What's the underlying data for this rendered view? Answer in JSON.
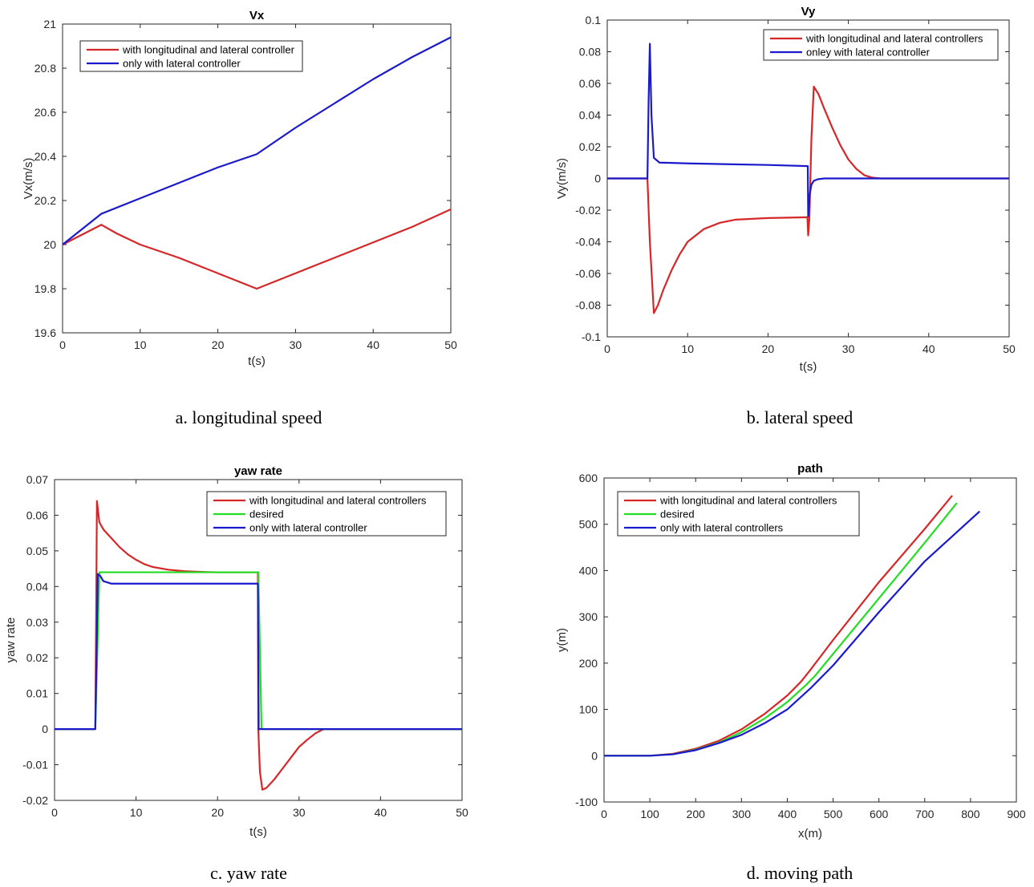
{
  "colors": {
    "red": "#d62728",
    "green": "#22dd22",
    "blue": "#1a1acc",
    "axis": "#262626"
  },
  "chart_data": [
    {
      "id": "a",
      "type": "line",
      "title": "Vx",
      "xlabel": "t(s)",
      "ylabel": "Vx(m/s)",
      "caption": "a. longitudinal speed",
      "xlim": [
        0,
        50
      ],
      "ylim": [
        19.6,
        21
      ],
      "xticks": [
        0,
        10,
        20,
        30,
        40,
        50
      ],
      "xtick_labels": [
        "0",
        "10",
        "20",
        "30",
        "40",
        "50"
      ],
      "yticks": [
        19.6,
        19.8,
        20,
        20.2,
        20.4,
        20.6,
        20.8,
        21
      ],
      "ytick_labels": [
        "19.6",
        "19.8",
        "20",
        "20.2",
        "20.4",
        "20.6",
        "20.8",
        "21"
      ],
      "grid": false,
      "legend_position": "top-left",
      "series": [
        {
          "name": "with longitudinal and lateral controller",
          "color": "#d62728",
          "x": [
            0,
            5,
            7,
            10,
            15,
            20,
            25,
            30,
            35,
            40,
            45,
            50
          ],
          "y": [
            20.0,
            20.09,
            20.05,
            20.0,
            19.94,
            19.87,
            19.8,
            19.87,
            19.94,
            20.01,
            20.08,
            20.16
          ]
        },
        {
          "name": "only with lateral controller",
          "color": "#1a1acc",
          "x": [
            0,
            5,
            10,
            15,
            20,
            25,
            30,
            35,
            40,
            45,
            50
          ],
          "y": [
            20.0,
            20.14,
            20.21,
            20.28,
            20.35,
            20.41,
            20.53,
            20.64,
            20.75,
            20.85,
            20.94
          ]
        }
      ]
    },
    {
      "id": "b",
      "type": "line",
      "title": "Vy",
      "xlabel": "t(s)",
      "ylabel": "Vy(m/s)",
      "caption": "b. lateral speed",
      "xlim": [
        0,
        50
      ],
      "ylim": [
        -0.1,
        0.1
      ],
      "xticks": [
        0,
        10,
        20,
        30,
        40,
        50
      ],
      "xtick_labels": [
        "0",
        "10",
        "20",
        "30",
        "40",
        "50"
      ],
      "yticks": [
        -0.1,
        -0.08,
        -0.06,
        -0.04,
        -0.02,
        0,
        0.02,
        0.04,
        0.06,
        0.08,
        0.1
      ],
      "ytick_labels": [
        "-0.1",
        "-0.08",
        "-0.06",
        "-0.04",
        "-0.02",
        "0",
        "0.02",
        "0.04",
        "0.06",
        "0.08",
        "0.1"
      ],
      "grid": false,
      "legend_position": "top-right",
      "series": [
        {
          "name": "with longitudinal and lateral controllers",
          "color": "#d62728",
          "x": [
            0,
            5,
            5.3,
            5.8,
            6.3,
            7,
            8,
            9,
            10,
            12,
            14,
            16,
            18,
            20,
            22,
            24.9,
            25.0,
            25.15,
            25.4,
            25.7,
            26.3,
            27,
            28,
            29,
            30,
            31,
            32,
            33,
            34,
            50
          ],
          "y": [
            0,
            0,
            -0.04,
            -0.085,
            -0.08,
            -0.07,
            -0.058,
            -0.048,
            -0.04,
            -0.032,
            -0.028,
            -0.026,
            -0.0255,
            -0.025,
            -0.0248,
            -0.0245,
            -0.036,
            -0.025,
            0.025,
            0.058,
            0.053,
            0.044,
            0.032,
            0.021,
            0.012,
            0.006,
            0.002,
            0.0005,
            0,
            0
          ]
        },
        {
          "name": "onley with lateral controller",
          "color": "#1a1acc",
          "x": [
            0,
            5,
            5.15,
            5.3,
            5.5,
            5.8,
            6.5,
            8,
            10,
            15,
            20,
            24.95,
            25.0,
            25.1,
            25.2,
            25.4,
            25.7,
            26.2,
            27,
            50
          ],
          "y": [
            0,
            0,
            0.05,
            0.085,
            0.04,
            0.013,
            0.01,
            0.0098,
            0.0095,
            0.009,
            0.0085,
            0.0078,
            -0.024,
            -0.018,
            -0.01,
            -0.004,
            -0.0015,
            -0.0005,
            0,
            0
          ]
        }
      ]
    },
    {
      "id": "c",
      "type": "line",
      "title": "yaw rate",
      "xlabel": "t(s)",
      "ylabel": "yaw rate",
      "caption": "c. yaw rate",
      "xlim": [
        0,
        50
      ],
      "ylim": [
        -0.02,
        0.07
      ],
      "xticks": [
        0,
        10,
        20,
        30,
        40,
        50
      ],
      "xtick_labels": [
        "0",
        "10",
        "20",
        "30",
        "40",
        "50"
      ],
      "yticks": [
        -0.02,
        -0.01,
        0,
        0.01,
        0.02,
        0.03,
        0.04,
        0.05,
        0.06,
        0.07
      ],
      "ytick_labels": [
        "-0.02",
        "-0.01",
        "0",
        "0.01",
        "0.02",
        "0.03",
        "0.04",
        "0.05",
        "0.06",
        "0.07"
      ],
      "grid": false,
      "legend_position": "top-right",
      "series": [
        {
          "name": "with longitudinal and lateral controllers",
          "color": "#d62728",
          "x": [
            0,
            5,
            5.1,
            5.2,
            5.5,
            6,
            7,
            8,
            9,
            10,
            11,
            12,
            14,
            16,
            18,
            20,
            24.95,
            25,
            25.2,
            25.5,
            26,
            27,
            28,
            29,
            30,
            31,
            32,
            33,
            50
          ],
          "y": [
            0,
            0,
            0.03,
            0.064,
            0.058,
            0.056,
            0.0535,
            0.051,
            0.049,
            0.0475,
            0.0463,
            0.0455,
            0.0447,
            0.0443,
            0.0441,
            0.044,
            0.044,
            0.0,
            -0.012,
            -0.017,
            -0.0165,
            -0.014,
            -0.011,
            -0.008,
            -0.005,
            -0.003,
            -0.0012,
            0,
            0
          ]
        },
        {
          "name": "desired",
          "color": "#22dd22",
          "x": [
            0,
            5,
            5.5,
            25,
            25.4,
            50
          ],
          "y": [
            0,
            0,
            0.044,
            0.044,
            0,
            0
          ]
        },
        {
          "name": "only with lateral controller",
          "color": "#1a1acc",
          "x": [
            0,
            5,
            5.15,
            5.3,
            5.6,
            6,
            7,
            10,
            20,
            24.95,
            25.05,
            25.3,
            26,
            50
          ],
          "y": [
            0,
            0,
            0.02,
            0.0435,
            0.043,
            0.0415,
            0.0408,
            0.0408,
            0.0408,
            0.0408,
            0.0,
            0,
            0,
            0
          ]
        }
      ]
    },
    {
      "id": "d",
      "type": "line",
      "title": "path",
      "xlabel": "x(m)",
      "ylabel": "y(m)",
      "caption": "d. moving path",
      "xlim": [
        0,
        900
      ],
      "ylim": [
        -100,
        600
      ],
      "xticks": [
        0,
        100,
        200,
        300,
        400,
        500,
        600,
        700,
        800,
        900
      ],
      "xtick_labels": [
        "0",
        "100",
        "200",
        "300",
        "400",
        "500",
        "600",
        "700",
        "800",
        "900"
      ],
      "yticks": [
        -100,
        0,
        100,
        200,
        300,
        400,
        500,
        600
      ],
      "ytick_labels": [
        "-100",
        "0",
        "100",
        "200",
        "300",
        "400",
        "500",
        "600"
      ],
      "grid": false,
      "legend_position": "top-left",
      "series": [
        {
          "name": "with longitudinal and lateral controllers",
          "color": "#d62728",
          "x": [
            0,
            100,
            150,
            200,
            250,
            300,
            350,
            400,
            430,
            450,
            500,
            600,
            700,
            760
          ],
          "y": [
            0,
            0,
            4,
            15,
            32,
            57,
            90,
            130,
            160,
            185,
            250,
            375,
            490,
            562
          ]
        },
        {
          "name": "desired",
          "color": "#22dd22",
          "x": [
            0,
            100,
            150,
            200,
            250,
            300,
            350,
            400,
            440,
            460,
            500,
            600,
            700,
            770
          ],
          "y": [
            0,
            0,
            3,
            13,
            28,
            51,
            80,
            116,
            152,
            172,
            220,
            340,
            460,
            546
          ]
        },
        {
          "name": "only with lateral controllers",
          "color": "#1a1acc",
          "x": [
            0,
            100,
            150,
            200,
            250,
            300,
            350,
            400,
            450,
            500,
            600,
            700,
            820
          ],
          "y": [
            0,
            0,
            3,
            12,
            27,
            45,
            70,
            100,
            145,
            195,
            310,
            420,
            528
          ]
        }
      ]
    }
  ]
}
